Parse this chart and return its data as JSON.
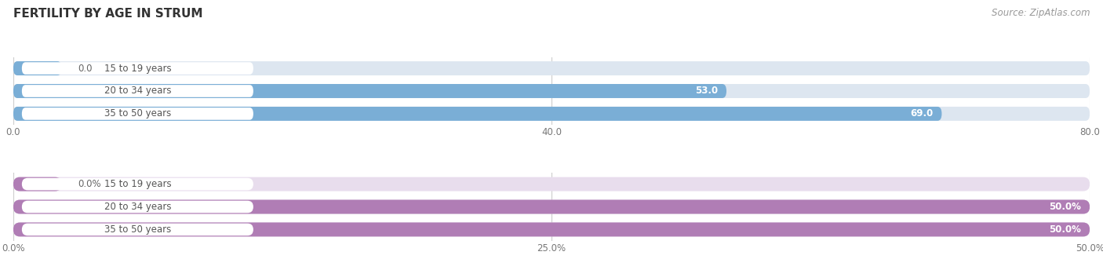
{
  "title": "FERTILITY BY AGE IN STRUM",
  "source": "Source: ZipAtlas.com",
  "top_chart": {
    "categories": [
      "15 to 19 years",
      "20 to 34 years",
      "35 to 50 years"
    ],
    "values": [
      0.0,
      53.0,
      69.0
    ],
    "xmax": 80,
    "xticks": [
      0.0,
      40.0,
      80.0
    ],
    "xtick_labels": [
      "0.0",
      "40.0",
      "80.0"
    ],
    "bar_color": "#7aaed6",
    "bar_bg_color": "#dde6f0",
    "value_labels": [
      "0.0",
      "53.0",
      "69.0"
    ]
  },
  "bottom_chart": {
    "categories": [
      "15 to 19 years",
      "20 to 34 years",
      "35 to 50 years"
    ],
    "values": [
      0.0,
      50.0,
      50.0
    ],
    "xmax": 50,
    "xticks": [
      0.0,
      25.0,
      50.0
    ],
    "xtick_labels": [
      "0.0%",
      "25.0%",
      "50.0%"
    ],
    "bar_color": "#b07db5",
    "bar_bg_color": "#e8dded",
    "value_labels": [
      "0.0%",
      "50.0%",
      "50.0%"
    ]
  },
  "bg_color": "#ffffff",
  "label_text_color": "#555555",
  "title_fontsize": 11,
  "label_fontsize": 8.5,
  "value_fontsize": 8.5,
  "tick_fontsize": 8.5,
  "source_fontsize": 8.5
}
